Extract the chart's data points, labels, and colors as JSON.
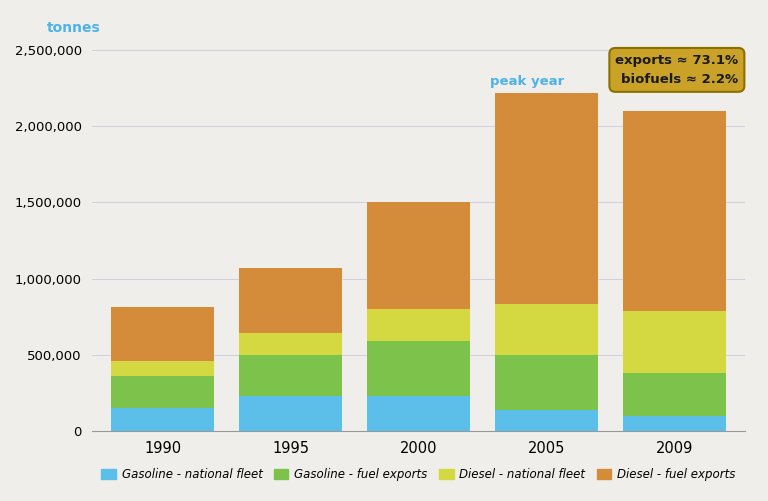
{
  "years": [
    "1990",
    "1995",
    "2000",
    "2005",
    "2009"
  ],
  "gasoline_national": [
    150000,
    230000,
    230000,
    140000,
    100000
  ],
  "gasoline_exports": [
    210000,
    270000,
    360000,
    360000,
    280000
  ],
  "diesel_national": [
    100000,
    140000,
    210000,
    330000,
    410000
  ],
  "diesel_exports": [
    350000,
    430000,
    700000,
    1390000,
    1310000
  ],
  "colors": {
    "gasoline_national": "#5bbfea",
    "gasoline_exports": "#7dc24b",
    "diesel_national": "#d4d941",
    "diesel_exports": "#d48b3a"
  },
  "ylim": [
    0,
    2500000
  ],
  "yticks": [
    0,
    500000,
    1000000,
    1500000,
    2000000,
    2500000
  ],
  "ylabel": "tonnes",
  "ylabel_color": "#4db3e6",
  "background_color": "#f0eeea",
  "grid_color": "#d0d0e0",
  "annotation_box_facecolor": "#c9a227",
  "annotation_box_edgecolor": "#8b7000",
  "annotation_text": "exports ≈ 73.1%\nbiofuels ≈ 2.2%",
  "peak_year_label": "peak year",
  "peak_year_idx": 3,
  "legend_labels": [
    "Gasoline - national fleet",
    "Gasoline - fuel exports",
    "Diesel - national fleet",
    "Diesel - fuel exports"
  ],
  "bar_width": 0.8,
  "figsize": [
    7.68,
    5.01
  ],
  "dpi": 100
}
